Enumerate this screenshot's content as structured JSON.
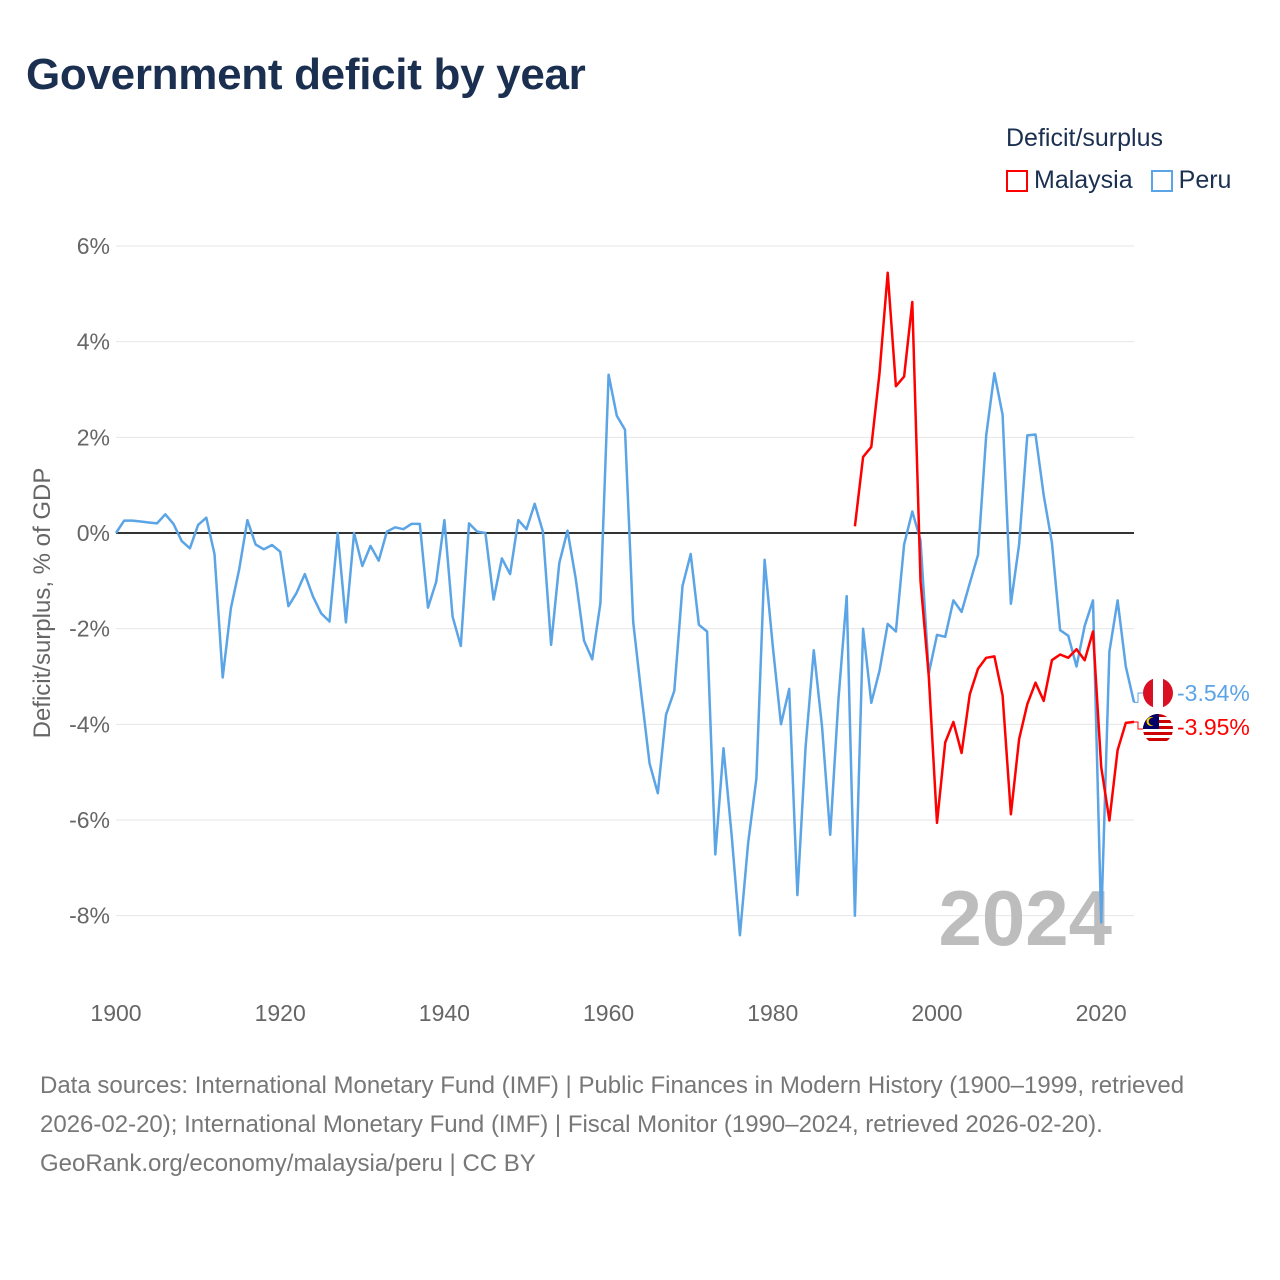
{
  "title": "Government deficit by year",
  "legend": {
    "title": "Deficit/surplus",
    "items": [
      {
        "name": "Malaysia",
        "color": "#ff0000"
      },
      {
        "name": "Peru",
        "color": "#5ba4e6"
      }
    ]
  },
  "footer": {
    "sources": "Data sources: International Monetary Fund (IMF) | Public Finances in Modern History (1900–1999, retrieved 2026-02-20); International Monetary Fund (IMF) | Fiscal Monitor (1990–2024, retrieved 2026-02-20).",
    "credit": "GeoRank.org/economy/malaysia/peru | CC BY"
  },
  "chart_data": {
    "type": "line",
    "title": "Government deficit by year",
    "xlabel": "",
    "ylabel": "Deficit/surplus, % of GDP",
    "xlim": [
      1900,
      2024
    ],
    "ylim": [
      -8,
      6
    ],
    "x_ticks": [
      "1900",
      "1920",
      "1940",
      "1960",
      "1980",
      "2000",
      "2020"
    ],
    "x_tick_values": [
      1900,
      1920,
      1940,
      1960,
      1980,
      2000,
      2020
    ],
    "y_ticks": [
      "6%",
      "4%",
      "2%",
      "0%",
      "-2%",
      "-4%",
      "-6%",
      "-8%"
    ],
    "y_tick_values": [
      6,
      4,
      2,
      0,
      -2,
      -4,
      -6,
      -8
    ],
    "grid": true,
    "legend_position": "top-right",
    "current_year": "2024",
    "series": [
      {
        "name": "Peru",
        "color": "#5ba4e6",
        "start_year": 1900,
        "end_label": "-3.54%",
        "values": [
          0,
          0.26,
          0.26,
          0.24,
          0.22,
          0.2,
          0.39,
          0.19,
          -0.17,
          -0.32,
          0.17,
          0.32,
          -0.44,
          -3.02,
          -1.57,
          -0.77,
          0.27,
          -0.24,
          -0.34,
          -0.25,
          -0.39,
          -1.53,
          -1.25,
          -0.86,
          -1.33,
          -1.68,
          -1.85,
          0,
          -1.87,
          0,
          -0.69,
          -0.27,
          -0.58,
          0.03,
          0.12,
          0.08,
          0.19,
          0.19,
          -1.56,
          -1.02,
          0.27,
          -1.75,
          -2.36,
          0.2,
          0.03,
          0,
          -1.39,
          -0.53,
          -0.86,
          0.27,
          0.08,
          0.61,
          0.03,
          -2.34,
          -0.63,
          0.05,
          -0.95,
          -2.25,
          -2.64,
          -1.47,
          3.31,
          2.45,
          2.16,
          -1.86,
          -3.38,
          -4.82,
          -5.44,
          -3.8,
          -3.3,
          -1.11,
          -0.44,
          -1.92,
          -2.06,
          -6.72,
          -4.5,
          -6.33,
          -8.41,
          -6.49,
          -5.13,
          -0.56,
          -2.37,
          -4.0,
          -3.26,
          -7.57,
          -4.47,
          -2.45,
          -4.04,
          -6.31,
          -3.46,
          -1.32,
          -8.0,
          -2.0,
          -3.55,
          -2.88,
          -1.9,
          -2.06,
          -0.24,
          0.45,
          -0.15,
          -2.93,
          -2.13,
          -2.17,
          -1.41,
          -1.65,
          -1.05,
          -0.46,
          2.04,
          3.34,
          2.47,
          -1.48,
          -0.24,
          2.04,
          2.06,
          0.79,
          -0.2,
          -2.03,
          -2.15,
          -2.79,
          -1.94,
          -1.41,
          -8.14,
          -2.48,
          -1.41,
          -2.79,
          -3.54
        ]
      },
      {
        "name": "Malaysia",
        "color": "#ff0000",
        "start_year": 1990,
        "end_label": "-3.95%",
        "values": [
          0.14,
          1.59,
          1.8,
          3.34,
          5.44,
          3.07,
          3.27,
          4.83,
          -1.0,
          -3.0,
          -6.06,
          -4.38,
          -3.95,
          -4.6,
          -3.37,
          -2.84,
          -2.61,
          -2.58,
          -3.4,
          -5.88,
          -4.31,
          -3.58,
          -3.13,
          -3.51,
          -2.66,
          -2.54,
          -2.61,
          -2.43,
          -2.66,
          -2.06,
          -4.89,
          -6.01,
          -4.54,
          -3.97,
          -3.95
        ]
      }
    ]
  }
}
